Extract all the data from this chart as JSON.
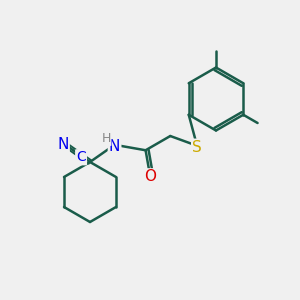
{
  "bg_color": "#f0f0f0",
  "bond_color": "#1a5c4a",
  "bond_width": 1.8,
  "font_size_atoms": 11,
  "atom_colors": {
    "N": "#0000ee",
    "O": "#dd0000",
    "S": "#ccaa00",
    "C_label": "#0000ee",
    "H": "#888888"
  }
}
